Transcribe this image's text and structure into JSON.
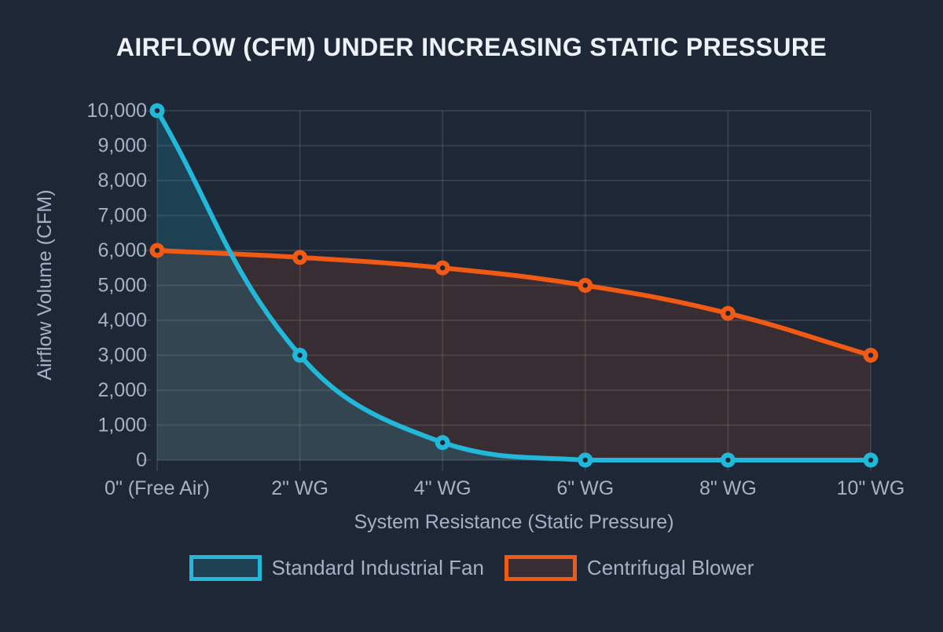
{
  "title": "AIRFLOW (CFM) UNDER INCREASING STATIC PRESSURE",
  "colors": {
    "background": "#1d2736",
    "grid": "rgba(255,255,255,0.10)",
    "tick_text": "#a6b2c4",
    "axis_title_text": "#a6b2c4",
    "title_text": "#edf2f8"
  },
  "chart_data": {
    "type": "line",
    "title": "AIRFLOW (CFM) UNDER INCREASING STATIC PRESSURE",
    "categories": [
      "0\" (Free Air)",
      "2\" WG",
      "4\" WG",
      "6\" WG",
      "8\" WG",
      "10\" WG"
    ],
    "series": [
      {
        "name": "Standard Industrial Fan",
        "color": "#21b8da",
        "fill_alpha": 0.18,
        "values": [
          10000,
          3000,
          500,
          0,
          0,
          0
        ]
      },
      {
        "name": "Centrifugal Blower",
        "color": "#f05a15",
        "fill_alpha": 0.13,
        "values": [
          6000,
          5800,
          5500,
          5000,
          4200,
          3000
        ]
      }
    ],
    "xlabel": "System Resistance (Static Pressure)",
    "ylabel": "Airflow Volume (CFM)",
    "ylim": [
      0,
      10000
    ],
    "ytick_step": 1000,
    "grid": true,
    "legend_position": "bottom",
    "curve": "smooth",
    "fill_to": "origin"
  }
}
